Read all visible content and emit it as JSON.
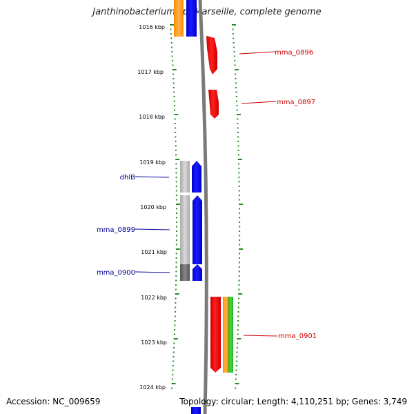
{
  "title": "Janthinobacterium sp. Marseille, complete genome",
  "footer": {
    "accession": "Accession: NC_009659",
    "summary": "Topology: circular; Length: 4,110,251 bp; Genes: 3,749"
  },
  "colors": {
    "tick": "#228b22",
    "backbone": "#808080",
    "forward_label": "#cc0000",
    "reverse_label": "#000099"
  },
  "chart_data": {
    "type": "genome_map",
    "kbp_ticks": [
      "1016 kbp",
      "1017 kbp",
      "1018 kbp",
      "1019 kbp",
      "1020 kbp",
      "1021 kbp",
      "1022 kbp",
      "1023 kbp",
      "1024 kbp"
    ],
    "gene_labels": [
      {
        "text": "mma_0896",
        "strand": "forward"
      },
      {
        "text": "mma_0897",
        "strand": "forward"
      },
      {
        "text": "dhlB",
        "strand": "reverse"
      },
      {
        "text": "mma_0899",
        "strand": "reverse"
      },
      {
        "text": "mma_0900",
        "strand": "reverse"
      },
      {
        "text": "mma_0901",
        "strand": "forward"
      }
    ]
  }
}
